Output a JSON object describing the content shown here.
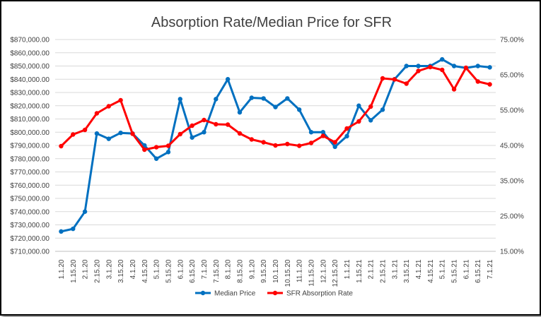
{
  "chart_data": {
    "type": "line",
    "title": "Absorption Rate/Median Price for SFR",
    "xlabel": "",
    "ylabel": "",
    "categories": [
      "1.1.20",
      "1.15.20",
      "2.1.20",
      "2.15.20",
      "3.1.20",
      "3.15.20",
      "4.1.20",
      "4.15.20",
      "5.1.20",
      "5.15.20",
      "6.1.20",
      "6.15.20",
      "7.1.20",
      "7.15.20",
      "8.1.20",
      "8.15.20",
      "9.1.20",
      "9.15.20",
      "10.1.20",
      "10.15.20",
      "11.1.20",
      "11.15.20",
      "12.1.20",
      "12.15.20",
      "1.1.21",
      "1.15.21",
      "2.1.21",
      "2.15.21",
      "3.1.21",
      "3.15.21",
      "4.1.21",
      "4.15.21",
      "5.1.21",
      "5.15.21",
      "6.1.21",
      "6.15.21",
      "7.1.21"
    ],
    "ylim_left": [
      710000,
      870000
    ],
    "ylim_right": [
      0.15,
      0.75
    ],
    "left_ticks": [
      "$710,000.00",
      "$720,000.00",
      "$730,000.00",
      "$740,000.00",
      "$750,000.00",
      "$760,000.00",
      "$770,000.00",
      "$780,000.00",
      "$790,000.00",
      "$800,000.00",
      "$810,000.00",
      "$820,000.00",
      "$830,000.00",
      "$840,000.00",
      "$850,000.00",
      "$860,000.00",
      "$870,000.00"
    ],
    "right_ticks": [
      "15.00%",
      "25.00%",
      "35.00%",
      "45.00%",
      "55.00%",
      "65.00%",
      "75.00%"
    ],
    "grid": true,
    "legend_position": "bottom",
    "series": [
      {
        "name": "Median Price",
        "axis": "left",
        "color": "#0070C0",
        "values": [
          725000,
          727000,
          740000,
          799000,
          795000,
          799500,
          799000,
          790000,
          780000,
          785000,
          825000,
          796000,
          800000,
          825000,
          840000,
          815000,
          826000,
          825500,
          819000,
          825500,
          817000,
          800000,
          800000,
          789000,
          797000,
          820000,
          809000,
          817000,
          840000,
          850000,
          850000,
          850000,
          855000,
          850000,
          848500,
          850000,
          849000
        ]
      },
      {
        "name": "SFR Absorption Rate",
        "axis": "right",
        "color": "#FF0000",
        "values": [
          0.448,
          0.481,
          0.494,
          0.541,
          0.561,
          0.578,
          0.483,
          0.438,
          0.445,
          0.449,
          0.482,
          0.506,
          0.522,
          0.51,
          0.509,
          0.484,
          0.467,
          0.459,
          0.45,
          0.454,
          0.449,
          0.457,
          0.477,
          0.459,
          0.498,
          0.518,
          0.56,
          0.64,
          0.637,
          0.625,
          0.661,
          0.672,
          0.664,
          0.609,
          0.67,
          0.631,
          0.623
        ]
      }
    ]
  }
}
